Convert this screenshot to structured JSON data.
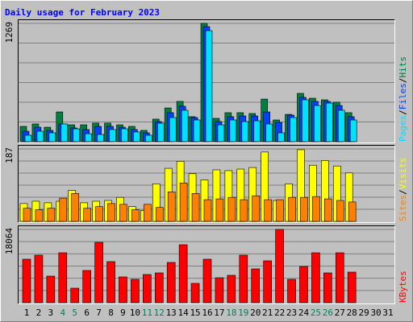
{
  "chart_data": [
    {
      "type": "bar",
      "title": "Daily usage for February 2023",
      "legend_separator": "/",
      "ylim": [
        0,
        1269
      ],
      "yticks": [
        1269
      ],
      "series": [
        {
          "name": "Hits",
          "color": "#008040",
          "values": [
            164,
            190,
            155,
            319,
            181,
            181,
            199,
            199,
            181,
            164,
            121,
            242,
            362,
            432,
            268,
            1269,
            250,
            311,
            311,
            302,
            457,
            233,
            293,
            518,
            466,
            449,
            423,
            311,
            null,
            null,
            null
          ]
        },
        {
          "name": "Files",
          "color": "#0040ff",
          "values": [
            112,
            155,
            121,
            190,
            147,
            130,
            164,
            164,
            155,
            130,
            95,
            216,
            311,
            380,
            259,
            1234,
            216,
            268,
            276,
            276,
            319,
            207,
            285,
            475,
            432,
            432,
            388,
            268,
            null,
            null,
            null
          ]
        },
        {
          "name": "Pages",
          "color": "#00e0ff",
          "values": [
            69,
            112,
            95,
            190,
            138,
            86,
            78,
            130,
            138,
            104,
            69,
            198,
            259,
            337,
            233,
            1191,
            181,
            233,
            216,
            224,
            190,
            95,
            259,
            449,
            388,
            414,
            337,
            233,
            null,
            null,
            null
          ]
        }
      ]
    },
    {
      "type": "bar",
      "legend_separator": "/",
      "ylim": [
        0,
        187
      ],
      "yticks": [
        187
      ],
      "series": [
        {
          "name": "Visits",
          "color": "#ffff00",
          "values": [
            46,
            52,
            48,
            52,
            80,
            48,
            52,
            54,
            62,
            38,
            28,
            97,
            137,
            155,
            123,
            107,
            133,
            131,
            135,
            139,
            179,
            54,
            97,
            185,
            145,
            157,
            143,
            125,
            null,
            null,
            null
          ]
        },
        {
          "name": "Sites",
          "color": "#ff8000",
          "values": [
            34,
            30,
            34,
            60,
            72,
            34,
            38,
            46,
            44,
            30,
            44,
            36,
            76,
            99,
            72,
            56,
            58,
            62,
            56,
            66,
            56,
            56,
            62,
            62,
            64,
            58,
            54,
            50,
            null,
            null,
            null
          ]
        }
      ]
    },
    {
      "type": "bar",
      "ylim": [
        0,
        18064
      ],
      "yticks": [
        18064
      ],
      "categories": [
        "1",
        "2",
        "3",
        "4",
        "5",
        "6",
        "7",
        "8",
        "9",
        "10",
        "11",
        "12",
        "13",
        "14",
        "15",
        "16",
        "17",
        "18",
        "19",
        "20",
        "21",
        "22",
        "23",
        "24",
        "25",
        "26",
        "27",
        "28",
        "29",
        "30",
        "31"
      ],
      "category_colors": [
        "#000000",
        "#000000",
        "#000000",
        "#00805c",
        "#00805c",
        "#000000",
        "#000000",
        "#000000",
        "#000000",
        "#000000",
        "#00805c",
        "#00805c",
        "#000000",
        "#000000",
        "#000000",
        "#000000",
        "#000000",
        "#00805c",
        "#00805c",
        "#000000",
        "#000000",
        "#000000",
        "#000000",
        "#000000",
        "#00805c",
        "#00805c",
        "#000000",
        "#000000",
        "#000000",
        "#000000",
        "#000000"
      ],
      "series": [
        {
          "name": "KBytes",
          "color": "#ff0000",
          "values": [
            10719,
            11712,
            6551,
            12308,
            3573,
            7940,
            14888,
            10124,
            6352,
            5757,
            6948,
            7345,
            9925,
            14292,
            4764,
            10719,
            6153,
            6749,
            11712,
            8337,
            10322,
            18064,
            5757,
            8933,
            12308,
            7345,
            12308,
            7543,
            null,
            null,
            null
          ]
        }
      ]
    }
  ]
}
